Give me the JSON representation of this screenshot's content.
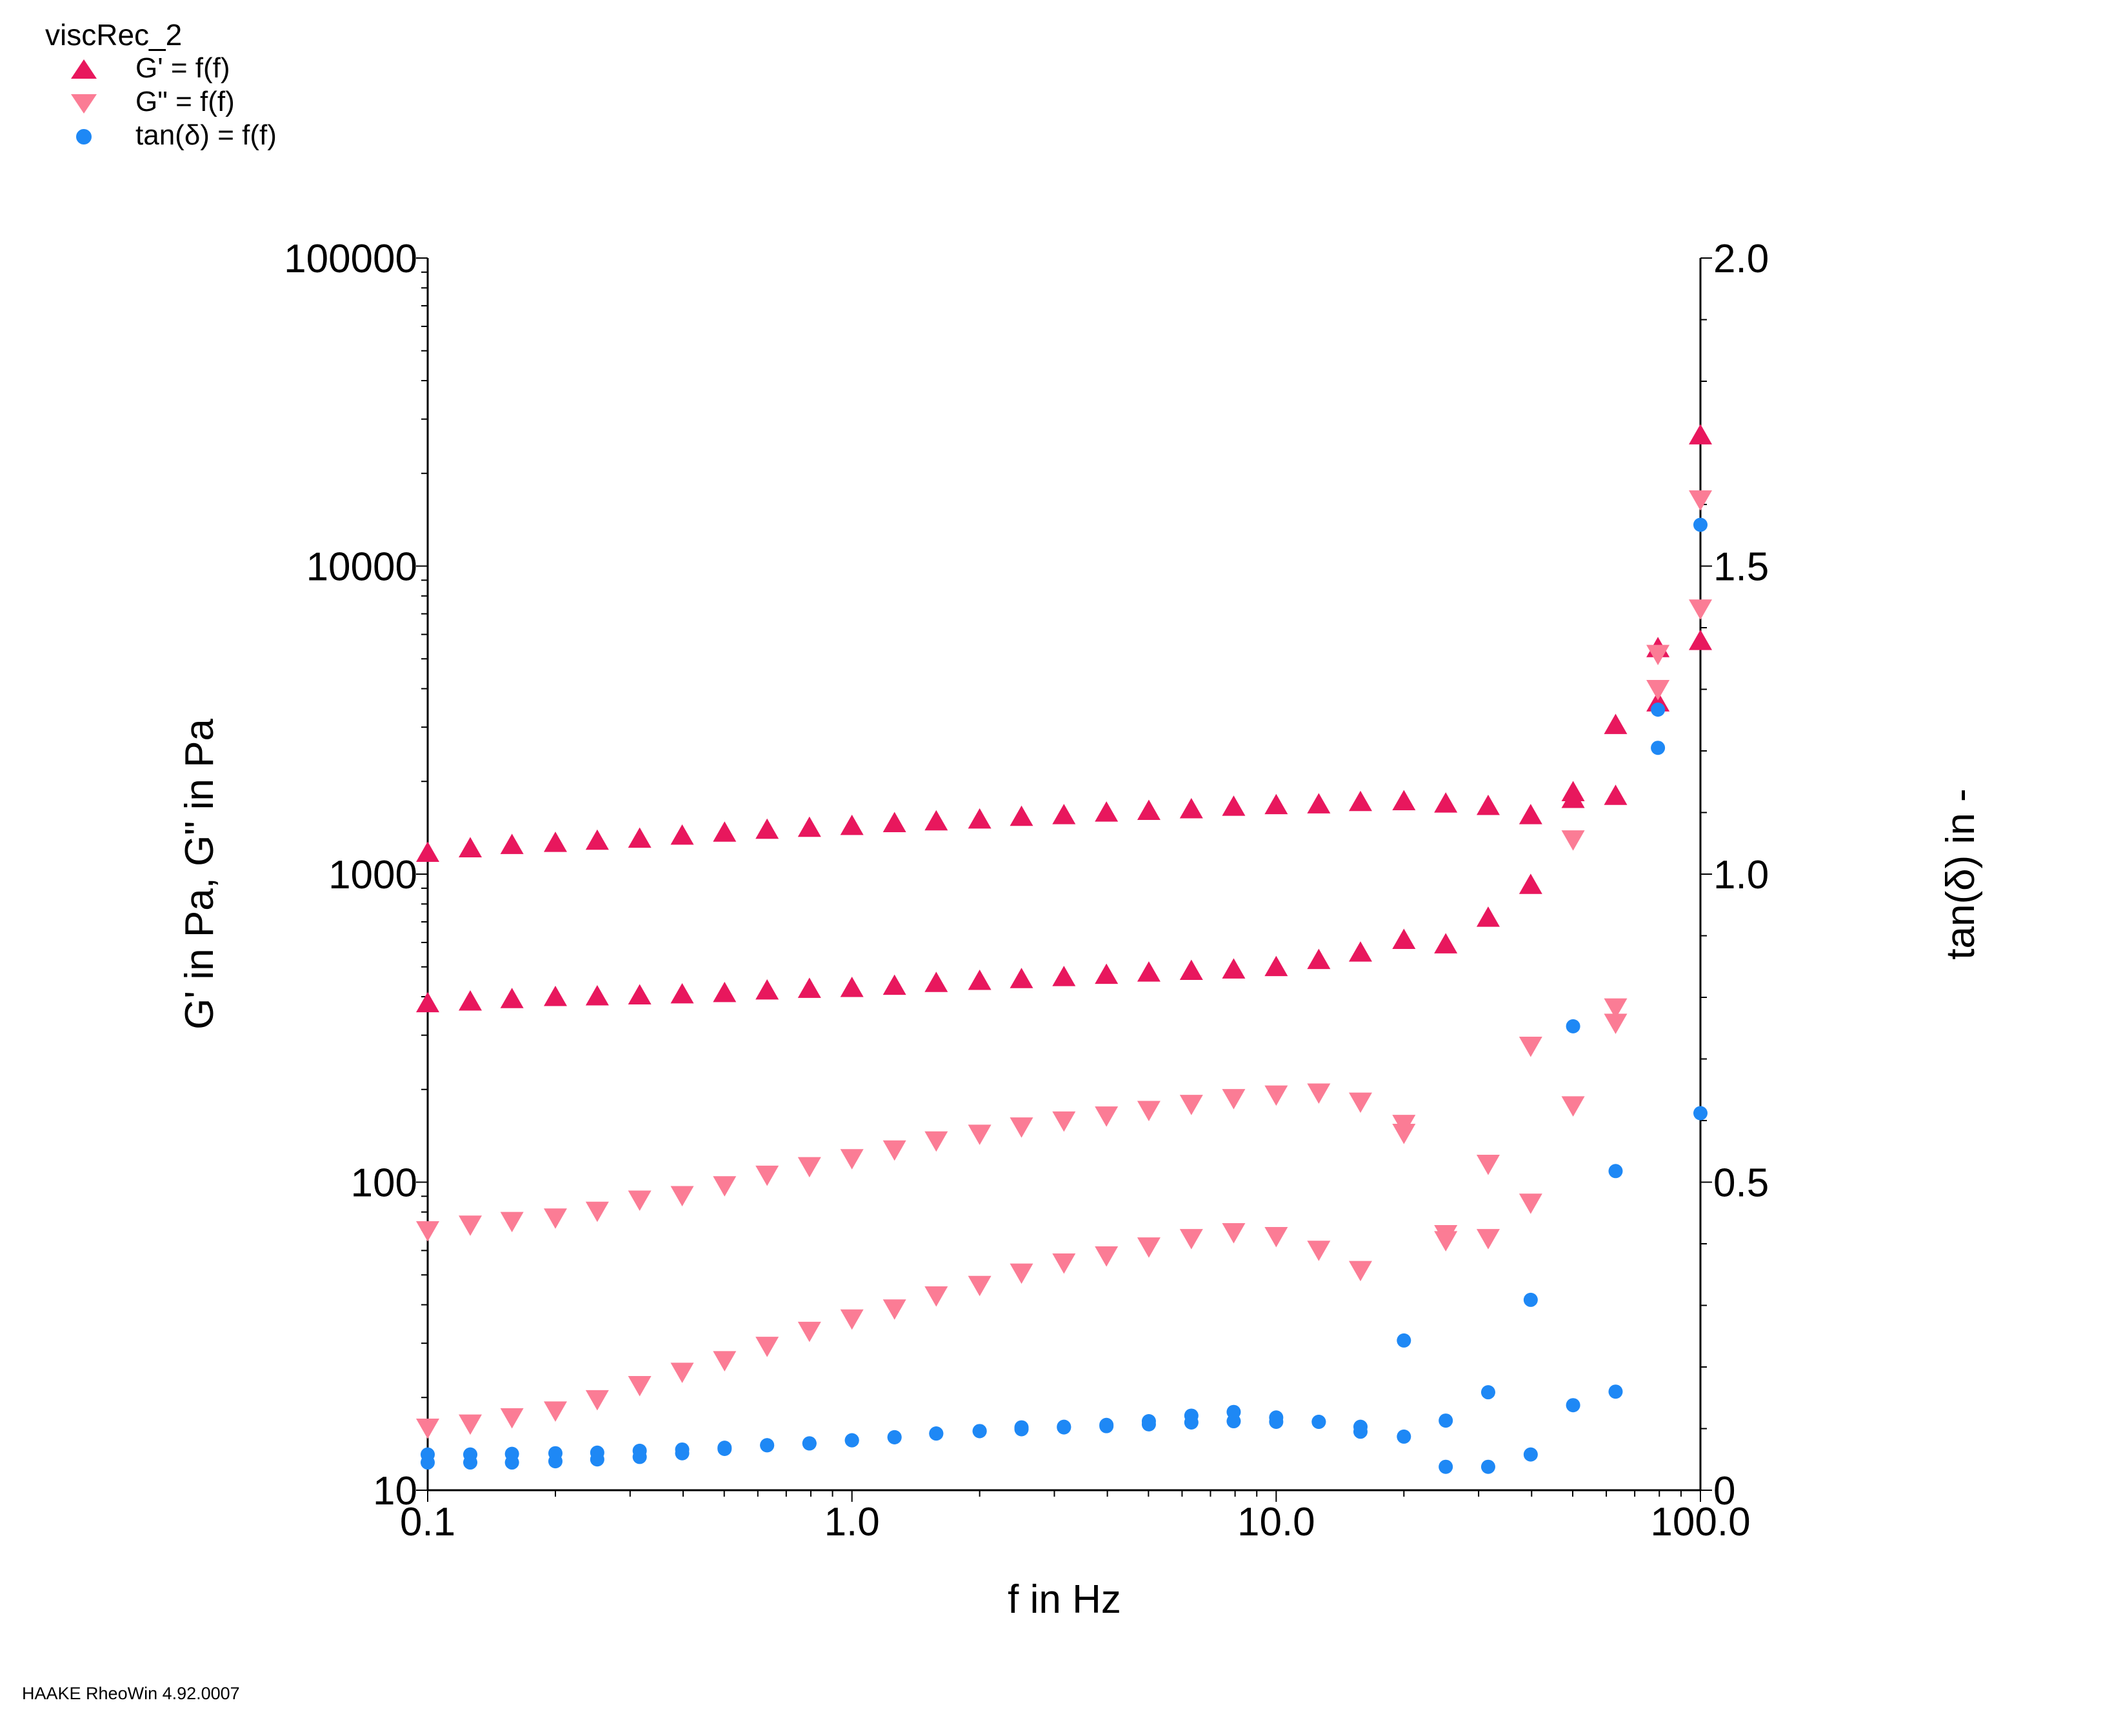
{
  "legend": {
    "title": "viscRec_2",
    "items": [
      {
        "label": "G' = f(f)",
        "marker": "triangle-up",
        "color": "#e8175d"
      },
      {
        "label": "G\" = f(f)",
        "marker": "triangle-down",
        "color": "#fb7c95"
      },
      {
        "label": "tan(δ) = f(f)",
        "marker": "circle",
        "color": "#1e88f5"
      }
    ]
  },
  "footer": "HAAKE RheoWin 4.92.0007",
  "chart_data": {
    "type": "scatter",
    "xlabel": "f in Hz",
    "ylabel": "G' in Pa, G\" in Pa",
    "y2label": "tan(δ) in -",
    "xscale": "log",
    "yscale": "log",
    "xlim": [
      0.1,
      100.0
    ],
    "ylim": [
      10,
      100000
    ],
    "y2lim": [
      0,
      2.0
    ],
    "x_ticks": [
      "0.1",
      "1.0",
      "10.0",
      "100.0"
    ],
    "y_ticks": [
      "10",
      "100",
      "1000",
      "10000",
      "100000"
    ],
    "y2_ticks": [
      "0",
      "0.5",
      "1.0",
      "1.5",
      "2.0"
    ],
    "colors": {
      "G_prime": "#e8175d",
      "G_double_prime": "#fb7c95",
      "tan_delta": "#1e88f5"
    },
    "series": [
      {
        "name": "G' = f(f)",
        "axis": "left",
        "marker": "triangle-up",
        "x": [
          0.1,
          0.126,
          0.158,
          0.2,
          0.251,
          0.316,
          0.398,
          0.501,
          0.631,
          0.794,
          1.0,
          1.26,
          1.58,
          2.0,
          2.51,
          3.16,
          3.98,
          5.01,
          6.31,
          7.94,
          10.0,
          12.6,
          15.8,
          20.0,
          25.1,
          31.6,
          39.8,
          50.1,
          63.1,
          79.4,
          100.0
        ],
        "y": [
          1170,
          1210,
          1240,
          1260,
          1280,
          1300,
          1330,
          1360,
          1390,
          1410,
          1430,
          1460,
          1480,
          1500,
          1530,
          1550,
          1580,
          1600,
          1620,
          1650,
          1670,
          1680,
          1710,
          1720,
          1690,
          1660,
          1550,
          1840,
          3040,
          5400,
          26500
        ]
      },
      {
        "name": "G' = f(f)",
        "axis": "left",
        "marker": "triangle-up",
        "x": [
          0.1,
          0.126,
          0.158,
          0.2,
          0.251,
          0.316,
          0.398,
          0.501,
          0.631,
          0.794,
          1.0,
          1.26,
          1.58,
          2.0,
          2.51,
          3.16,
          3.98,
          5.01,
          6.31,
          7.94,
          10.0,
          12.6,
          15.8,
          20.0,
          25.1,
          31.6,
          39.8,
          50.1,
          63.1,
          79.4,
          100.0
        ],
        "y": [
          380,
          385,
          392,
          398,
          400,
          403,
          406,
          410,
          418,
          423,
          426,
          433,
          442,
          449,
          455,
          462,
          470,
          478,
          484,
          489,
          498,
          525,
          555,
          610,
          590,
          720,
          920,
          1750,
          1790,
          3600,
          5700
        ]
      },
      {
        "name": "G\" = f(f)",
        "axis": "left",
        "marker": "triangle-down",
        "x": [
          0.1,
          0.126,
          0.158,
          0.2,
          0.251,
          0.316,
          0.398,
          0.501,
          0.631,
          0.794,
          1.0,
          1.26,
          1.58,
          2.0,
          2.51,
          3.16,
          3.98,
          5.01,
          6.31,
          7.94,
          10.0,
          12.6,
          15.8,
          20.0,
          25.1,
          31.6,
          39.8,
          50.1,
          63.1,
          79.4,
          100.0
        ],
        "y": [
          70,
          73,
          75,
          77,
          81,
          88,
          91,
          98,
          106,
          113,
          120,
          128,
          137,
          144,
          152,
          159,
          165,
          172,
          180,
          188,
          193,
          196,
          183,
          155,
          68,
          115,
          278,
          1300,
          370,
          5200,
          16500
        ]
      },
      {
        "name": "G\" = f(f)",
        "axis": "left",
        "marker": "triangle-down",
        "x": [
          0.1,
          0.126,
          0.158,
          0.2,
          0.251,
          0.316,
          0.398,
          0.501,
          0.631,
          0.794,
          1.0,
          1.26,
          1.58,
          2.0,
          2.51,
          3.16,
          3.98,
          5.01,
          6.31,
          7.94,
          10.0,
          12.6,
          15.8,
          20.0,
          25.1,
          31.6,
          39.8,
          50.1,
          63.1,
          79.4,
          100.0
        ],
        "y": [
          16,
          16.5,
          17.3,
          18.2,
          19.8,
          22,
          24.3,
          26.5,
          29.5,
          33,
          36.2,
          39,
          43,
          46.5,
          51,
          55,
          58,
          62,
          66,
          69,
          67,
          60.5,
          52,
          145,
          65,
          66,
          86,
          178,
          330,
          4000,
          7300
        ]
      },
      {
        "name": "tan(δ) = f(f)",
        "axis": "right",
        "marker": "circle",
        "x": [
          0.1,
          0.126,
          0.158,
          0.2,
          0.251,
          0.316,
          0.398,
          0.501,
          0.631,
          0.794,
          1.0,
          1.26,
          1.58,
          2.0,
          2.51,
          3.16,
          3.98,
          5.01,
          6.31,
          7.94,
          10.0,
          12.6,
          15.8,
          20.0,
          25.1,
          31.6,
          39.8,
          50.1,
          63.1,
          79.4,
          100.0
        ],
        "y": [
          0.058,
          0.058,
          0.059,
          0.06,
          0.061,
          0.064,
          0.066,
          0.069,
          0.073,
          0.076,
          0.081,
          0.086,
          0.092,
          0.096,
          0.099,
          0.103,
          0.106,
          0.112,
          0.121,
          0.127,
          0.118,
          0.111,
          0.103,
          0.243,
          0.113,
          0.159,
          0.309,
          0.753,
          0.518,
          1.267,
          1.567
        ]
      },
      {
        "name": "tan(δ) = f(f)",
        "axis": "right",
        "marker": "circle",
        "x": [
          0.1,
          0.126,
          0.158,
          0.2,
          0.251,
          0.316,
          0.398,
          0.501,
          0.631,
          0.794,
          1.0,
          1.26,
          1.58,
          2.0,
          2.51,
          3.16,
          3.98,
          5.01,
          6.31,
          7.94,
          10.0,
          12.6,
          15.8,
          20.0,
          25.1,
          31.6,
          39.8,
          50.1,
          63.1,
          79.4,
          100.0
        ],
        "y": [
          0.045,
          0.045,
          0.045,
          0.047,
          0.05,
          0.054,
          0.06,
          0.067,
          0.073,
          0.076,
          0.081,
          0.086,
          0.092,
          0.096,
          0.102,
          0.102,
          0.104,
          0.107,
          0.11,
          0.112,
          0.111,
          0.111,
          0.095,
          0.087,
          0.038,
          0.038,
          0.058,
          0.138,
          0.16,
          1.205,
          0.612
        ]
      }
    ]
  }
}
